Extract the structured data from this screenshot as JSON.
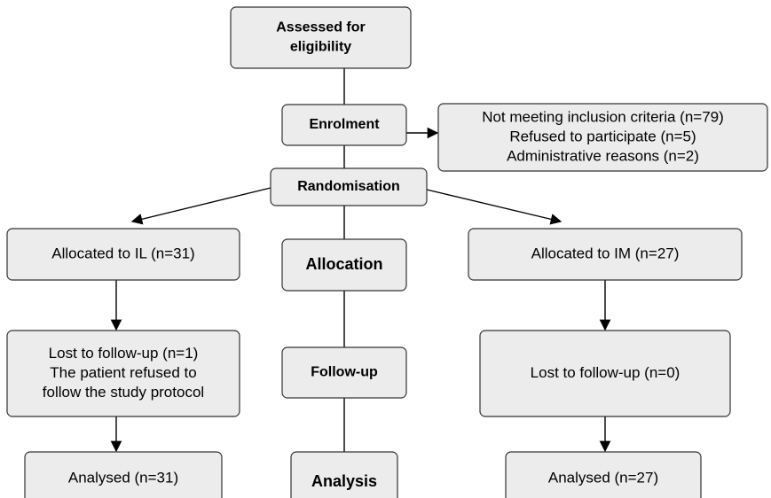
{
  "nodes": [
    {
      "lines": [
        "Assessed for",
        "eligibility"
      ]
    },
    {
      "lines": [
        "Enrolment"
      ]
    },
    {
      "lines": [
        "Not meeting inclusion criteria (n=79)",
        "Refused to participate (n=5)",
        "Administrative reasons (n=2)"
      ]
    },
    {
      "lines": [
        "Randomisation"
      ]
    },
    {
      "lines": [
        "Allocated to IL (n=31)"
      ]
    },
    {
      "lines": [
        "Allocation"
      ]
    },
    {
      "lines": [
        "Allocated to IM (n=27)"
      ]
    },
    {
      "lines": [
        "Lost to follow-up (n=1)",
        "The patient refused to",
        "follow the study protocol"
      ]
    },
    {
      "lines": [
        "Follow-up"
      ]
    },
    {
      "lines": [
        "Lost to follow-up (n=0)"
      ]
    },
    {
      "lines": [
        "Analysed (n=31)"
      ]
    },
    {
      "lines": [
        "Analysis"
      ]
    },
    {
      "lines": [
        "Analysed (n=27)"
      ]
    }
  ]
}
